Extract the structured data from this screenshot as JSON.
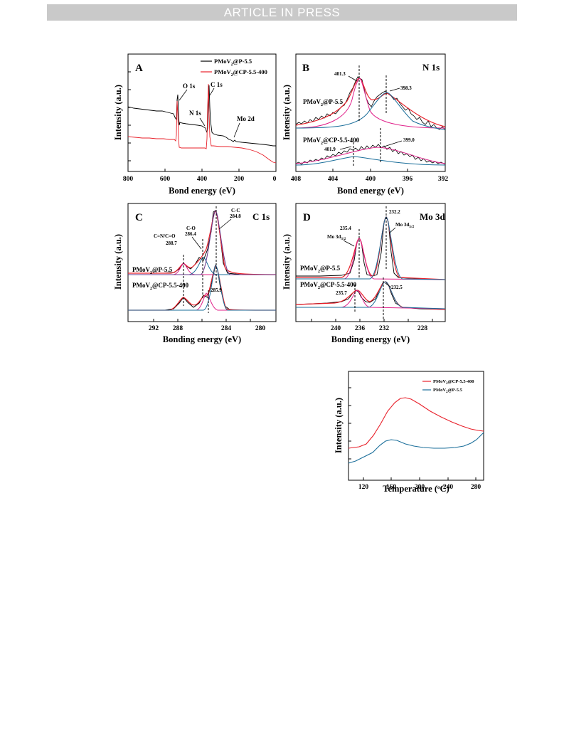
{
  "banner": "ARTICLE IN PRESS",
  "colors": {
    "black": "#000000",
    "red": "#e8202a",
    "magenta": "#e0218a",
    "blue": "#1f4e9e",
    "teal": "#1a6e9a",
    "gray": "#555555"
  },
  "panelA": {
    "letter": "A",
    "xlabel": "Bond energy (eV)",
    "ylabel": "Intensity (a.u.)",
    "xticks": [
      "800",
      "600",
      "400",
      "200",
      "0"
    ],
    "legend": [
      {
        "name_main": "PMoV",
        "name_sub": "2",
        "name_rest": "@P-5.5"
      },
      {
        "name_main": "PMoV",
        "name_sub": "2",
        "name_rest": "@CP-5.5-400"
      }
    ],
    "peaks": {
      "o1s": "O 1s",
      "n1s": "N 1s",
      "c1s": "C 1s",
      "mo2d": "Mo 2d"
    }
  },
  "panelB": {
    "letter": "B",
    "title": "N 1s",
    "xlabel": "Bond energy (eV)",
    "ylabel": "Intensity (a.u.)",
    "xticks": [
      "408",
      "404",
      "400",
      "396",
      "392"
    ],
    "labels": {
      "p1": "401.3",
      "p2": "398.3",
      "p3": "401.9",
      "p4": "399.0"
    },
    "sample1": {
      "main": "PMoV",
      "sub": "2",
      "rest": "@P-5.5"
    },
    "sample2": {
      "main": "PMoV",
      "sub": "2",
      "rest": "@CP-5.5-400"
    }
  },
  "panelC": {
    "letter": "C",
    "title": "C 1s",
    "xlabel": "Bonding energy (eV)",
    "ylabel": "Intensity (a.u.)",
    "xticks": [
      "292",
      "288",
      "284",
      "280"
    ],
    "labels": {
      "cc": "C-C",
      "cc_v": "284.8",
      "co": "C-O",
      "co_v": "286.4",
      "cn": "C=N/C=O",
      "cn_v": "288.7",
      "p4": "285.9"
    },
    "sample1": {
      "main": "PMoV",
      "sub": "2",
      "rest": "@P-5.5"
    },
    "sample2": {
      "main": "PMoV",
      "sub": "2",
      "rest": "@CP-5.5-400"
    }
  },
  "panelD": {
    "letter": "D",
    "title": "Mo 3d",
    "xlabel": "Bonding energy (eV)",
    "ylabel": "Intensity (a.u.)",
    "xticks": [
      "240",
      "236",
      "232",
      "228"
    ],
    "labels": {
      "p1": "235.4",
      "p2": "232.2",
      "p3": "235.7",
      "p4": "232.5",
      "mo32": "Mo 3d",
      "mo32_sub": "3/2",
      "mo52": "Mo 3d",
      "mo52_sub": "5/2"
    },
    "sample1": {
      "main": "PMoV",
      "sub": "2",
      "rest": "@P-5.5"
    },
    "sample2": {
      "main": "PMoV",
      "sub": "2",
      "rest": "@CP-5.5-400"
    }
  },
  "panelE": {
    "xlabel_main": "Temperature (",
    "xlabel_sup": "o",
    "xlabel_end": "C)",
    "ylabel": "Intensity (a.u.)",
    "xticks": [
      "120",
      "160",
      "200",
      "240",
      "280"
    ],
    "legend": [
      {
        "main": "PMoV",
        "sub": "2",
        "rest": "@CP-5.5-400"
      },
      {
        "main": "PMoV",
        "sub": "2",
        "rest": "@P-5.5"
      }
    ]
  }
}
